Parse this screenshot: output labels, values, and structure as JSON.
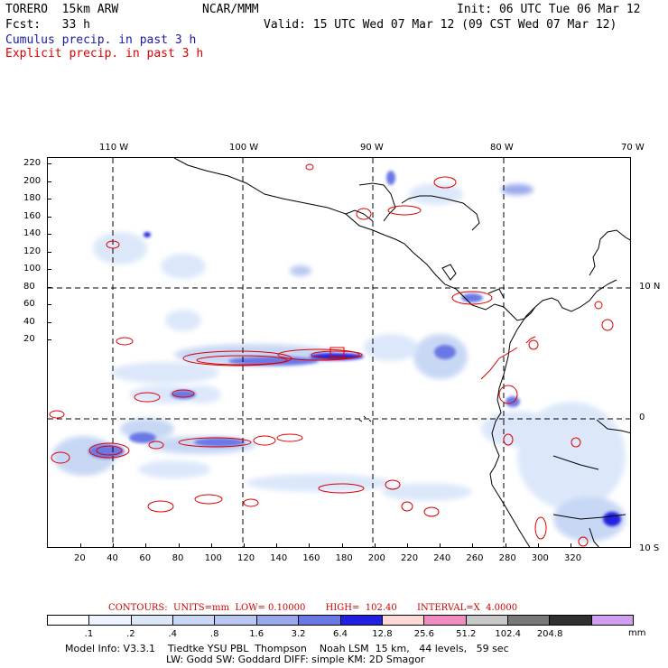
{
  "header": {
    "model": "TORERO  15km ARW",
    "org": "NCAR/MMM",
    "init": "Init: 06 UTC Tue 06 Mar 12",
    "fcst": "Fcst:   33 h",
    "valid": "Valid: 15 UTC Wed 07 Mar 12 (09 CST Wed 07 Mar 12)",
    "cumulus_label": "Cumulus precip. in past 3 h",
    "explicit_label": "Explicit precip. in past 3 h",
    "cumulus_color": "#1a1aa0",
    "explicit_color": "#dd0000"
  },
  "map": {
    "lon_labels": [
      "110 W",
      "100 W",
      "90 W",
      "80 W",
      "70 W"
    ],
    "lat_labels": [
      "10 N",
      "0",
      "10 S"
    ],
    "grid_x_labels": [
      "20",
      "40",
      "60",
      "80",
      "100",
      "120",
      "140",
      "160",
      "180",
      "200",
      "220",
      "240",
      "260",
      "280",
      "300",
      "320"
    ],
    "grid_y_labels": [
      "220",
      "200",
      "180",
      "160",
      "140",
      "120",
      "100",
      "80",
      "60",
      "40",
      "20"
    ]
  },
  "contours_text": "CONTOURS:  UNITS=mm  LOW= 0.10000       HIGH=  102.40       INTERVAL=X  4.0000",
  "colorbar": {
    "colors": [
      "#ffffff",
      "#eef4ff",
      "#dce8fa",
      "#c8d8f4",
      "#b8c8f0",
      "#9aa8ec",
      "#6a78e6",
      "#2020e0",
      "#ffd8d8",
      "#f08cc0",
      "#c8c8c8",
      "#787878",
      "#303030",
      "#d0a0f0"
    ],
    "labels": [
      ".1",
      ".2",
      ".4",
      ".8",
      "1.6",
      "3.2",
      "6.4",
      "12.8",
      "25.6",
      "51.2",
      "102.4",
      "204.8"
    ],
    "unit": "mm"
  },
  "model_info": {
    "line1": "Model Info: V3.3.1    Tiedtke YSU PBL  Thompson    Noah LSM  15 km,   44 levels,   59 sec",
    "line2": "LW: Godd SW: Goddard DIFF: simple KM: 2D Smagor"
  }
}
